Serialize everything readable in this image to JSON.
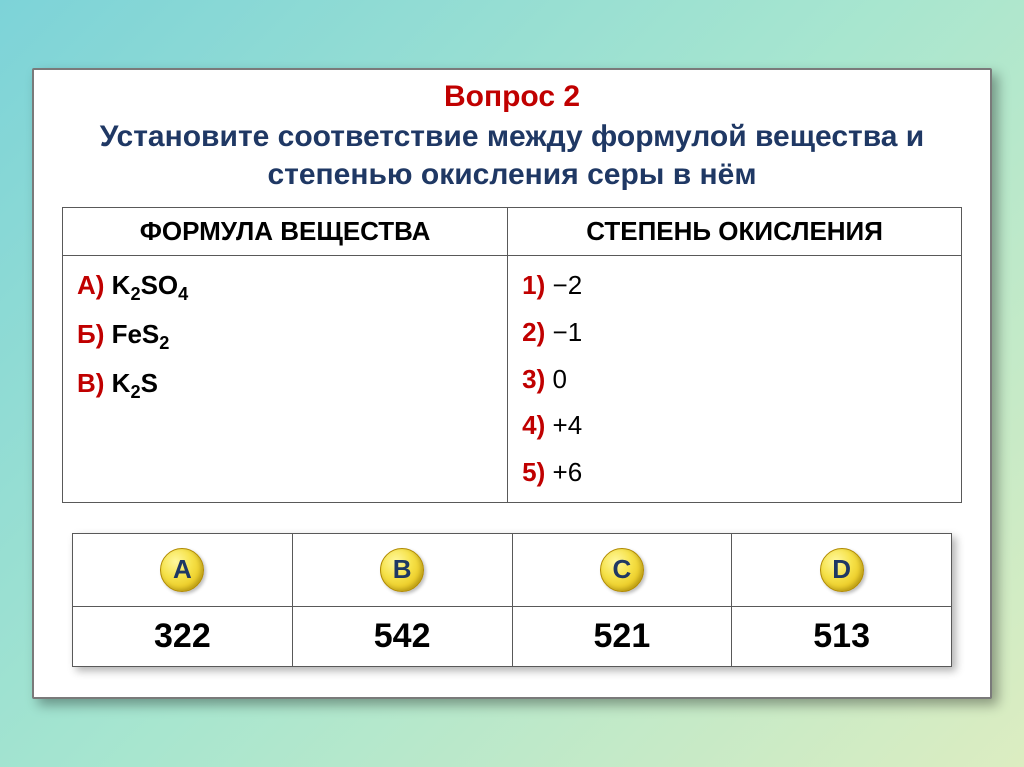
{
  "question": {
    "number_label": "Вопрос 2",
    "text": "Установите соответствие между формулой вещества и степенью окисления серы в нём"
  },
  "match": {
    "headers": {
      "left": "ФОРМУЛА ВЕЩЕСТВА",
      "right": "СТЕПЕНЬ ОКИСЛЕНИЯ"
    },
    "formulas": [
      {
        "label": "А)",
        "html": "K<span class='sub'>2</span>SO<span class='sub'>4</span>"
      },
      {
        "label": "Б)",
        "html": "FeS<span class='sub'>2</span>"
      },
      {
        "label": "В)",
        "html": "K<span class='sub'>2</span>S"
      }
    ],
    "degrees": [
      {
        "label": "1)",
        "value": "−2"
      },
      {
        "label": "2)",
        "value": "−1"
      },
      {
        "label": "3)",
        "value": "0"
      },
      {
        "label": "4)",
        "value": "+4"
      },
      {
        "label": "5)",
        "value": "+6"
      }
    ]
  },
  "answers": {
    "options": [
      {
        "letter": "A",
        "value": "322"
      },
      {
        "letter": "B",
        "value": "542"
      },
      {
        "letter": "C",
        "value": "521"
      },
      {
        "letter": "D",
        "value": "513"
      }
    ]
  },
  "style": {
    "accent_red": "#c00000",
    "accent_navy": "#1f3864",
    "border_gray": "#595959",
    "bubble_gradient": [
      "#fff89e",
      "#f6e24a",
      "#e0b200"
    ]
  }
}
